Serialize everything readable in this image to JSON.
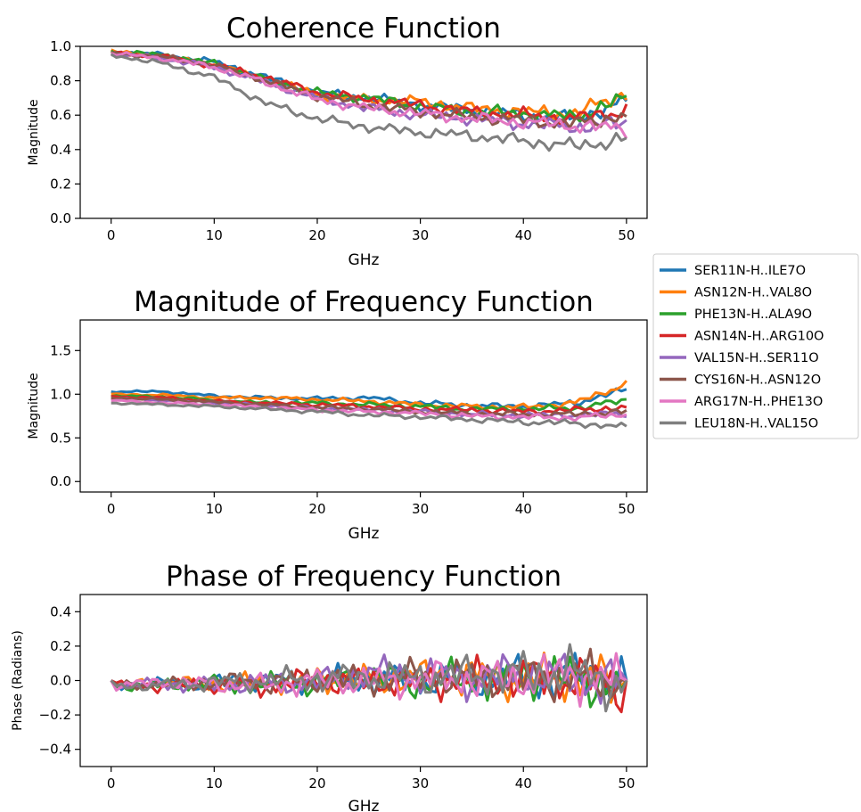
{
  "chart_data": [
    {
      "type": "line",
      "title": "Coherence Function",
      "xlabel": "GHz",
      "ylabel": "Magnitude",
      "xlim": [
        -3,
        52
      ],
      "ylim": [
        0.0,
        1.0
      ],
      "xticks": [
        0,
        10,
        20,
        30,
        40,
        50
      ],
      "yticks": [
        0.0,
        0.2,
        0.4,
        0.6,
        0.8,
        1.0
      ],
      "xtick_labels": [
        "0",
        "10",
        "20",
        "30",
        "40",
        "50"
      ],
      "ytick_labels": [
        "0.0",
        "0.2",
        "0.4",
        "0.6",
        "0.8",
        "1.0"
      ],
      "grid": false,
      "x": [
        0,
        5,
        10,
        15,
        20,
        25,
        30,
        35,
        40,
        45,
        50
      ],
      "series": [
        {
          "name": "SER11N-H..ILE7O",
          "values": [
            0.97,
            0.95,
            0.91,
            0.82,
            0.73,
            0.7,
            0.66,
            0.63,
            0.6,
            0.58,
            0.68
          ]
        },
        {
          "name": "ASN12N-H..VAL8O",
          "values": [
            0.97,
            0.94,
            0.89,
            0.81,
            0.72,
            0.69,
            0.68,
            0.64,
            0.62,
            0.61,
            0.73
          ]
        },
        {
          "name": "PHE13N-H..ALA9O",
          "values": [
            0.97,
            0.95,
            0.9,
            0.81,
            0.73,
            0.7,
            0.65,
            0.62,
            0.61,
            0.59,
            0.7
          ]
        },
        {
          "name": "ASN14N-H..ARG10O",
          "values": [
            0.96,
            0.94,
            0.89,
            0.82,
            0.73,
            0.69,
            0.66,
            0.62,
            0.6,
            0.58,
            0.63
          ]
        },
        {
          "name": "VAL15N-H..SER11O",
          "values": [
            0.96,
            0.93,
            0.88,
            0.79,
            0.7,
            0.64,
            0.6,
            0.58,
            0.55,
            0.53,
            0.55
          ]
        },
        {
          "name": "CYS16N-H..ASN12O",
          "values": [
            0.96,
            0.94,
            0.89,
            0.8,
            0.71,
            0.66,
            0.62,
            0.59,
            0.57,
            0.55,
            0.6
          ]
        },
        {
          "name": "ARG17N-H..PHE13O",
          "values": [
            0.96,
            0.93,
            0.88,
            0.79,
            0.69,
            0.64,
            0.61,
            0.58,
            0.56,
            0.54,
            0.52
          ]
        },
        {
          "name": "LEU18N-H..VAL15O",
          "values": [
            0.95,
            0.9,
            0.82,
            0.67,
            0.58,
            0.53,
            0.5,
            0.48,
            0.45,
            0.42,
            0.46
          ]
        }
      ]
    },
    {
      "type": "line",
      "title": "Magnitude of Frequency Function",
      "xlabel": "GHz",
      "ylabel": "Magnitude",
      "xlim": [
        -3,
        52
      ],
      "ylim": [
        -0.12,
        1.85
      ],
      "xticks": [
        0,
        10,
        20,
        30,
        40,
        50
      ],
      "yticks": [
        0.0,
        0.5,
        1.0,
        1.5
      ],
      "xtick_labels": [
        "0",
        "10",
        "20",
        "30",
        "40",
        "50"
      ],
      "ytick_labels": [
        "0.0",
        "0.5",
        "1.0",
        "1.5"
      ],
      "grid": false,
      "x": [
        0,
        5,
        10,
        15,
        20,
        25,
        30,
        35,
        40,
        45,
        50
      ],
      "series": [
        {
          "name": "SER11N-H..ILE7O",
          "values": [
            1.03,
            1.03,
            0.98,
            0.96,
            0.95,
            0.96,
            0.9,
            0.87,
            0.86,
            0.9,
            1.05
          ]
        },
        {
          "name": "ASN12N-H..VAL8O",
          "values": [
            1.0,
            0.99,
            0.96,
            0.96,
            0.94,
            0.92,
            0.88,
            0.86,
            0.85,
            0.9,
            1.12
          ]
        },
        {
          "name": "PHE13N-H..ALA9O",
          "values": [
            0.98,
            0.97,
            0.93,
            0.9,
            0.9,
            0.88,
            0.86,
            0.83,
            0.83,
            0.84,
            0.93
          ]
        },
        {
          "name": "ASN14N-H..ARG10O",
          "values": [
            0.97,
            0.96,
            0.92,
            0.9,
            0.88,
            0.86,
            0.83,
            0.82,
            0.8,
            0.82,
            0.85
          ]
        },
        {
          "name": "VAL15N-H..SER11O",
          "values": [
            0.95,
            0.93,
            0.9,
            0.87,
            0.84,
            0.82,
            0.8,
            0.77,
            0.76,
            0.76,
            0.78
          ]
        },
        {
          "name": "CYS16N-H..ASN12O",
          "values": [
            0.96,
            0.94,
            0.91,
            0.88,
            0.85,
            0.83,
            0.8,
            0.78,
            0.77,
            0.77,
            0.8
          ]
        },
        {
          "name": "ARG17N-H..PHE13O",
          "values": [
            0.93,
            0.9,
            0.88,
            0.85,
            0.82,
            0.8,
            0.78,
            0.75,
            0.74,
            0.73,
            0.77
          ]
        },
        {
          "name": "LEU18N-H..VAL15O",
          "values": [
            0.9,
            0.88,
            0.86,
            0.83,
            0.8,
            0.76,
            0.74,
            0.71,
            0.68,
            0.67,
            0.62
          ]
        }
      ]
    },
    {
      "type": "line",
      "title": "Phase of Frequency Function",
      "xlabel": "GHz",
      "ylabel": "Phase (Radians)",
      "xlim": [
        -3,
        52
      ],
      "ylim": [
        -0.5,
        0.5
      ],
      "xticks": [
        0,
        10,
        20,
        30,
        40,
        50
      ],
      "yticks": [
        -0.4,
        -0.2,
        0.0,
        0.2,
        0.4
      ],
      "xtick_labels": [
        "0",
        "10",
        "20",
        "30",
        "40",
        "50"
      ],
      "ytick_labels": [
        "−0.4",
        "−0.2",
        "0.0",
        "0.2",
        "0.4"
      ],
      "grid": false,
      "x": [
        0,
        5,
        10,
        15,
        20,
        25,
        30,
        35,
        40,
        45,
        50
      ],
      "series": [
        {
          "name": "SER11N-H..ILE7O",
          "values": [
            0.0,
            0.01,
            0.02,
            0.03,
            0.02,
            0.04,
            0.03,
            0.05,
            0.04,
            0.05,
            0.0
          ]
        },
        {
          "name": "ASN12N-H..VAL8O",
          "values": [
            0.0,
            0.02,
            0.01,
            0.02,
            0.04,
            0.03,
            0.05,
            0.06,
            0.03,
            0.06,
            0.0
          ]
        },
        {
          "name": "PHE13N-H..ALA9O",
          "values": [
            0.0,
            0.0,
            0.02,
            0.0,
            0.02,
            0.05,
            0.02,
            0.04,
            0.05,
            0.04,
            0.0
          ]
        },
        {
          "name": "ASN14N-H..ARG10O",
          "values": [
            0.0,
            0.0,
            0.0,
            0.0,
            0.03,
            0.02,
            0.04,
            0.03,
            0.05,
            0.04,
            0.0
          ]
        },
        {
          "name": "VAL15N-H..SER11O",
          "values": [
            0.0,
            0.01,
            0.0,
            0.02,
            0.02,
            0.08,
            0.06,
            0.04,
            0.07,
            0.05,
            0.0
          ]
        },
        {
          "name": "CYS16N-H..ASN12O",
          "values": [
            0.0,
            0.01,
            0.02,
            0.02,
            0.03,
            0.04,
            0.05,
            0.05,
            0.04,
            0.06,
            0.0
          ]
        },
        {
          "name": "ARG17N-H..PHE13O",
          "values": [
            0.0,
            0.02,
            0.01,
            0.0,
            0.03,
            0.02,
            0.04,
            0.04,
            0.04,
            0.07,
            0.0
          ]
        },
        {
          "name": "LEU18N-H..VAL15O",
          "values": [
            0.0,
            0.0,
            0.02,
            0.03,
            0.04,
            0.05,
            0.05,
            0.06,
            0.07,
            0.08,
            0.0
          ]
        }
      ]
    }
  ],
  "legend": {
    "placement": "right",
    "entries": [
      "SER11N-H..ILE7O",
      "ASN12N-H..VAL8O",
      "PHE13N-H..ALA9O",
      "ASN14N-H..ARG10O",
      "VAL15N-H..SER11O",
      "CYS16N-H..ASN12O",
      "ARG17N-H..PHE13O",
      "LEU18N-H..VAL15O"
    ],
    "colors": [
      "#1f77b4",
      "#ff7f0e",
      "#2ca02c",
      "#d62728",
      "#9467bd",
      "#8c564b",
      "#e377c2",
      "#7f7f7f"
    ]
  }
}
